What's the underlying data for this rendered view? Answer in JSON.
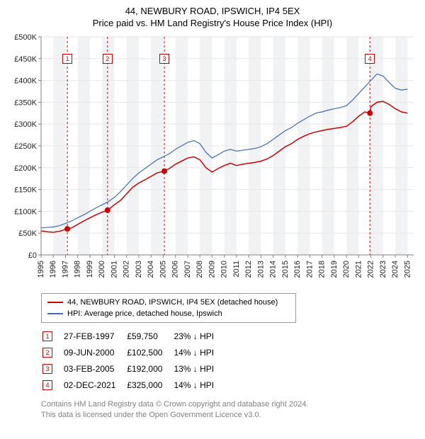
{
  "title_line1": "44, NEWBURY ROAD, IPSWICH, IP4 5EX",
  "title_line2": "Price paid vs. HM Land Registry's House Price Index (HPI)",
  "chart": {
    "type": "line",
    "background_color": "#ffffff",
    "plot_background": "#ffffff",
    "grid_color": "#e6e6e6",
    "axis_color": "#808080",
    "shaded_bands_color": "#f1f2f3",
    "x_axis": {
      "min": 1995,
      "max": 2025.5,
      "tick_years": [
        1995,
        1996,
        1997,
        1998,
        1999,
        2000,
        2001,
        2002,
        2003,
        2004,
        2005,
        2006,
        2007,
        2008,
        2009,
        2010,
        2011,
        2012,
        2013,
        2014,
        2015,
        2016,
        2017,
        2018,
        2019,
        2020,
        2021,
        2022,
        2023,
        2024,
        2025
      ]
    },
    "y_axis": {
      "min": 0,
      "max": 500000,
      "tick_step": 50000,
      "tick_labels": [
        "£0",
        "£50K",
        "£100K",
        "£150K",
        "£200K",
        "£250K",
        "£300K",
        "£350K",
        "£400K",
        "£450K",
        "£500K"
      ]
    },
    "series": [
      {
        "name": "44, NEWBURY ROAD, IPSWICH, IP4 5EX (detached house)",
        "color": "#cc0000",
        "line_width": 1.5,
        "points": [
          [
            1995.0,
            55000
          ],
          [
            1995.5,
            53000
          ],
          [
            1996.0,
            52000
          ],
          [
            1996.5,
            54000
          ],
          [
            1997.15,
            59750
          ],
          [
            1997.5,
            62000
          ],
          [
            1998.0,
            70000
          ],
          [
            1998.5,
            78000
          ],
          [
            1999.0,
            85000
          ],
          [
            1999.5,
            92000
          ],
          [
            2000.0,
            98000
          ],
          [
            2000.44,
            102500
          ],
          [
            2001.0,
            115000
          ],
          [
            2001.5,
            125000
          ],
          [
            2002.0,
            140000
          ],
          [
            2002.5,
            155000
          ],
          [
            2003.0,
            165000
          ],
          [
            2003.5,
            172000
          ],
          [
            2004.0,
            180000
          ],
          [
            2004.5,
            188000
          ],
          [
            2005.09,
            192000
          ],
          [
            2005.5,
            198000
          ],
          [
            2006.0,
            208000
          ],
          [
            2006.5,
            215000
          ],
          [
            2007.0,
            222000
          ],
          [
            2007.5,
            225000
          ],
          [
            2008.0,
            218000
          ],
          [
            2008.5,
            200000
          ],
          [
            2009.0,
            190000
          ],
          [
            2009.5,
            198000
          ],
          [
            2010.0,
            205000
          ],
          [
            2010.5,
            210000
          ],
          [
            2011.0,
            205000
          ],
          [
            2011.5,
            208000
          ],
          [
            2012.0,
            210000
          ],
          [
            2012.5,
            212000
          ],
          [
            2013.0,
            215000
          ],
          [
            2013.5,
            220000
          ],
          [
            2014.0,
            228000
          ],
          [
            2014.5,
            238000
          ],
          [
            2015.0,
            248000
          ],
          [
            2015.5,
            255000
          ],
          [
            2016.0,
            265000
          ],
          [
            2016.5,
            272000
          ],
          [
            2017.0,
            278000
          ],
          [
            2017.5,
            282000
          ],
          [
            2018.0,
            285000
          ],
          [
            2018.5,
            288000
          ],
          [
            2019.0,
            290000
          ],
          [
            2019.5,
            292000
          ],
          [
            2020.0,
            295000
          ],
          [
            2020.5,
            305000
          ],
          [
            2021.0,
            318000
          ],
          [
            2021.5,
            328000
          ],
          [
            2021.92,
            325000
          ],
          [
            2022.0,
            340000
          ],
          [
            2022.5,
            350000
          ],
          [
            2023.0,
            352000
          ],
          [
            2023.5,
            345000
          ],
          [
            2024.0,
            335000
          ],
          [
            2024.5,
            328000
          ],
          [
            2025.0,
            325000
          ]
        ]
      },
      {
        "name": "HPI: Average price, detached house, Ipswich",
        "color": "#3e6db3",
        "line_width": 1.2,
        "points": [
          [
            1995.0,
            62000
          ],
          [
            1995.5,
            63000
          ],
          [
            1996.0,
            64000
          ],
          [
            1996.5,
            67000
          ],
          [
            1997.0,
            72000
          ],
          [
            1997.5,
            78000
          ],
          [
            1998.0,
            85000
          ],
          [
            1998.5,
            92000
          ],
          [
            1999.0,
            100000
          ],
          [
            1999.5,
            108000
          ],
          [
            2000.0,
            115000
          ],
          [
            2000.5,
            122000
          ],
          [
            2001.0,
            132000
          ],
          [
            2001.5,
            145000
          ],
          [
            2002.0,
            160000
          ],
          [
            2002.5,
            175000
          ],
          [
            2003.0,
            188000
          ],
          [
            2003.5,
            198000
          ],
          [
            2004.0,
            208000
          ],
          [
            2004.5,
            218000
          ],
          [
            2005.0,
            225000
          ],
          [
            2005.5,
            232000
          ],
          [
            2006.0,
            242000
          ],
          [
            2006.5,
            250000
          ],
          [
            2007.0,
            258000
          ],
          [
            2007.5,
            262000
          ],
          [
            2008.0,
            255000
          ],
          [
            2008.5,
            235000
          ],
          [
            2009.0,
            222000
          ],
          [
            2009.5,
            230000
          ],
          [
            2010.0,
            238000
          ],
          [
            2010.5,
            242000
          ],
          [
            2011.0,
            238000
          ],
          [
            2011.5,
            240000
          ],
          [
            2012.0,
            242000
          ],
          [
            2012.5,
            244000
          ],
          [
            2013.0,
            248000
          ],
          [
            2013.5,
            255000
          ],
          [
            2014.0,
            265000
          ],
          [
            2014.5,
            275000
          ],
          [
            2015.0,
            285000
          ],
          [
            2015.5,
            292000
          ],
          [
            2016.0,
            302000
          ],
          [
            2016.5,
            310000
          ],
          [
            2017.0,
            318000
          ],
          [
            2017.5,
            325000
          ],
          [
            2018.0,
            328000
          ],
          [
            2018.5,
            332000
          ],
          [
            2019.0,
            335000
          ],
          [
            2019.5,
            338000
          ],
          [
            2020.0,
            342000
          ],
          [
            2020.5,
            355000
          ],
          [
            2021.0,
            370000
          ],
          [
            2021.5,
            385000
          ],
          [
            2022.0,
            400000
          ],
          [
            2022.5,
            415000
          ],
          [
            2023.0,
            410000
          ],
          [
            2023.5,
            395000
          ],
          [
            2024.0,
            382000
          ],
          [
            2024.5,
            378000
          ],
          [
            2025.0,
            380000
          ]
        ]
      }
    ],
    "event_markers": [
      {
        "n": "1",
        "year": 1997.15,
        "price": 59750
      },
      {
        "n": "2",
        "year": 2000.44,
        "price": 102500
      },
      {
        "n": "3",
        "year": 2005.09,
        "price": 192000
      },
      {
        "n": "4",
        "year": 2021.92,
        "price": 325000
      }
    ],
    "marker_dot_color": "#cc0000",
    "marker_line_color": "#cc0000",
    "marker_line_dash": "3,3"
  },
  "legend": {
    "items": [
      {
        "color": "#cc0000",
        "label": "44, NEWBURY ROAD, IPSWICH, IP4 5EX (detached house)"
      },
      {
        "color": "#3e6db3",
        "label": "HPI: Average price, detached house, Ipswich"
      }
    ]
  },
  "events_table": {
    "rows": [
      {
        "n": "1",
        "date": "27-FEB-1997",
        "price": "£59,750",
        "delta": "23% ↓ HPI"
      },
      {
        "n": "2",
        "date": "09-JUN-2000",
        "price": "£102,500",
        "delta": "14% ↓ HPI"
      },
      {
        "n": "3",
        "date": "03-FEB-2005",
        "price": "£192,000",
        "delta": "13% ↓ HPI"
      },
      {
        "n": "4",
        "date": "02-DEC-2021",
        "price": "£325,000",
        "delta": "14% ↓ HPI"
      }
    ]
  },
  "footnote_line1": "Contains HM Land Registry data © Crown copyright and database right 2024.",
  "footnote_line2": "This data is licensed under the Open Government Licence v3.0."
}
